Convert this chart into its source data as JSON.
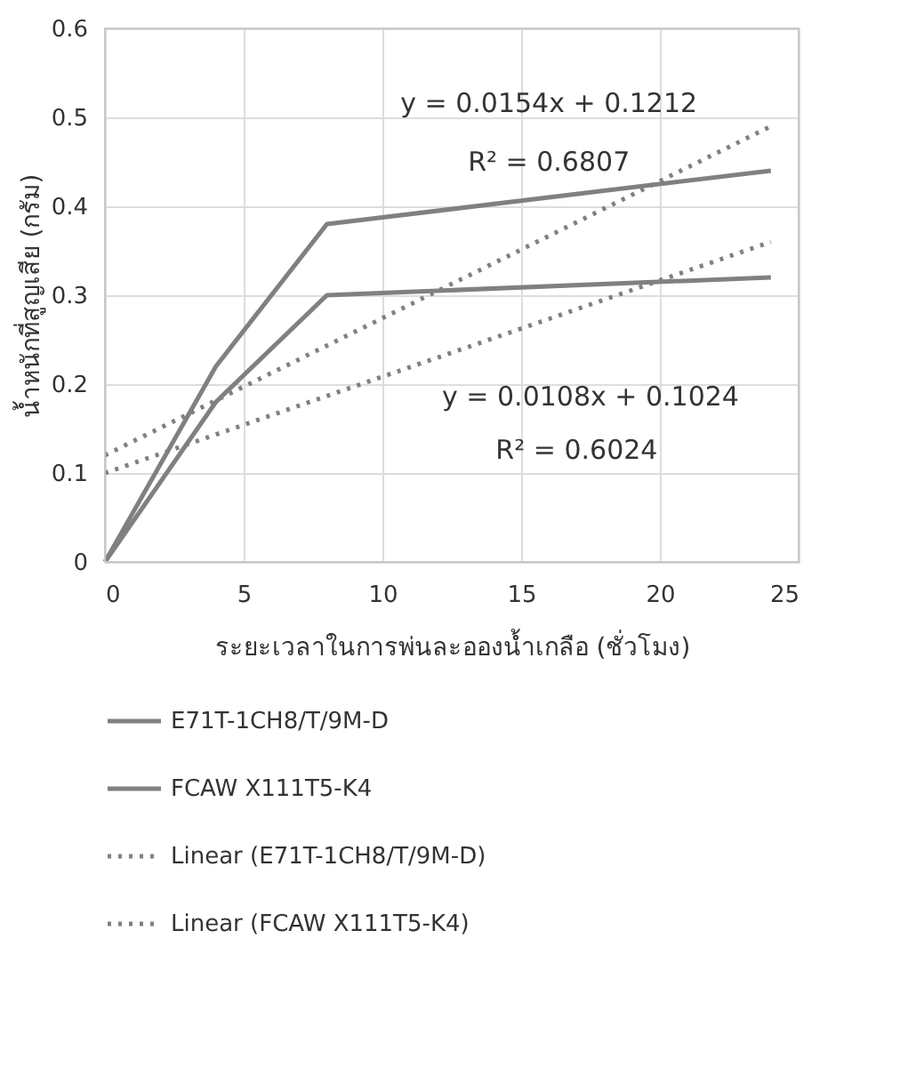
{
  "chart_data": {
    "type": "line",
    "xlabel": "ระยะเวลาในการพ่นละอองน้ำเกลือ (ชั่วโมง)",
    "ylabel": "น้ำหนักที่สูญเสีย (กรัม)",
    "series": [
      {
        "name": "E71T-1CH8/T/9M-D",
        "color": "#808080",
        "x": [
          0,
          4,
          8,
          24
        ],
        "values": [
          0,
          0.22,
          0.38,
          0.44
        ],
        "line_style": "solid"
      },
      {
        "name": "FCAW X111T5-K4",
        "color": "#808080",
        "x": [
          0,
          4,
          8,
          24
        ],
        "values": [
          0,
          0.18,
          0.3,
          0.32
        ],
        "line_style": "solid"
      },
      {
        "name": "Linear (E71T-1CH8/T/9M-D)",
        "color": "#808080",
        "x": [
          0,
          24
        ],
        "values": [
          0.12,
          0.49
        ],
        "line_style": "dotted"
      },
      {
        "name": "Linear (FCAW X111T5-K4)",
        "color": "#808080",
        "x": [
          0,
          24
        ],
        "values": [
          0.1,
          0.36
        ],
        "line_style": "dotted"
      }
    ],
    "annotations": [
      "y = 0.0154x + 0.1212",
      "R² = 0.6807",
      "y = 0.0108x + 0.1024",
      "R² = 0.6024"
    ],
    "xlim": [
      0,
      25
    ],
    "xticks": [
      0,
      5,
      10,
      15,
      20,
      25
    ],
    "ylim": [
      0,
      0.6
    ],
    "yticks": [
      {
        "value": 0,
        "label": "0"
      },
      0.1,
      0.2,
      0.3,
      0.4,
      0.5,
      0.6
    ],
    "grid": true,
    "legend": "bottom",
    "marker": "none"
  }
}
